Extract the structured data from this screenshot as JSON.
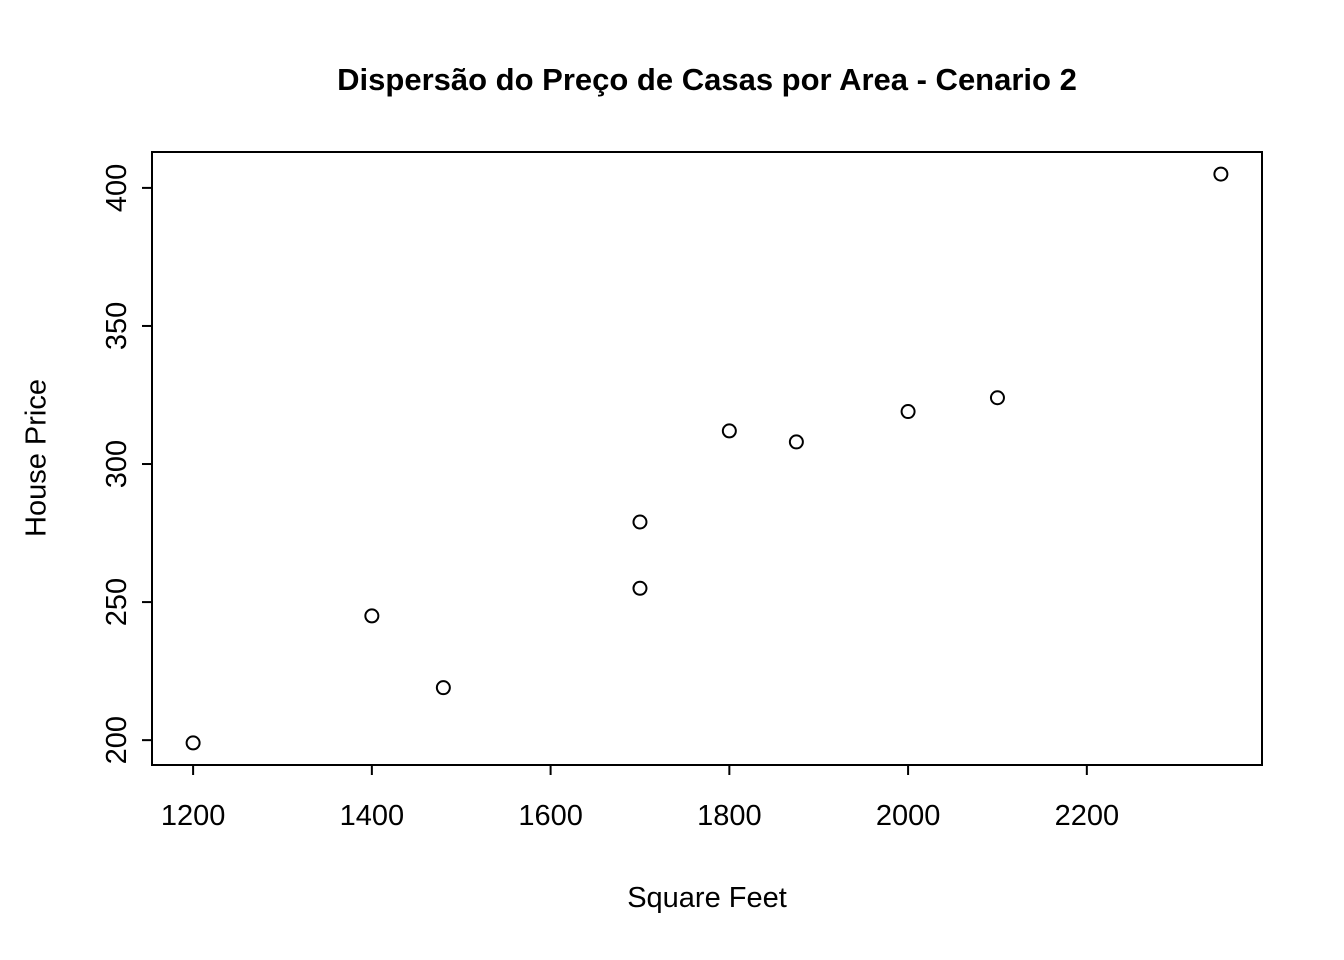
{
  "chart_data": {
    "type": "scatter",
    "title": "Dispersão do Preço de Casas por Area - Cenario 2",
    "xlabel": "Square Feet",
    "ylabel": "House Price",
    "x": [
      1200,
      1400,
      1480,
      1700,
      1700,
      1800,
      1875,
      2000,
      2100,
      2350
    ],
    "y": [
      199,
      245,
      219,
      279,
      255,
      312,
      308,
      319,
      324,
      405
    ],
    "xticks": [
      "1200",
      "1400",
      "1600",
      "1800",
      "2000",
      "2200"
    ],
    "yticks": [
      "200",
      "250",
      "300",
      "350",
      "400"
    ],
    "xlim": [
      1154,
      2396
    ],
    "ylim": [
      191,
      413
    ],
    "point_style": "open-circle",
    "point_color": "#000000",
    "axis_color": "#000000",
    "background": "#ffffff",
    "grid": false,
    "legend": null
  }
}
